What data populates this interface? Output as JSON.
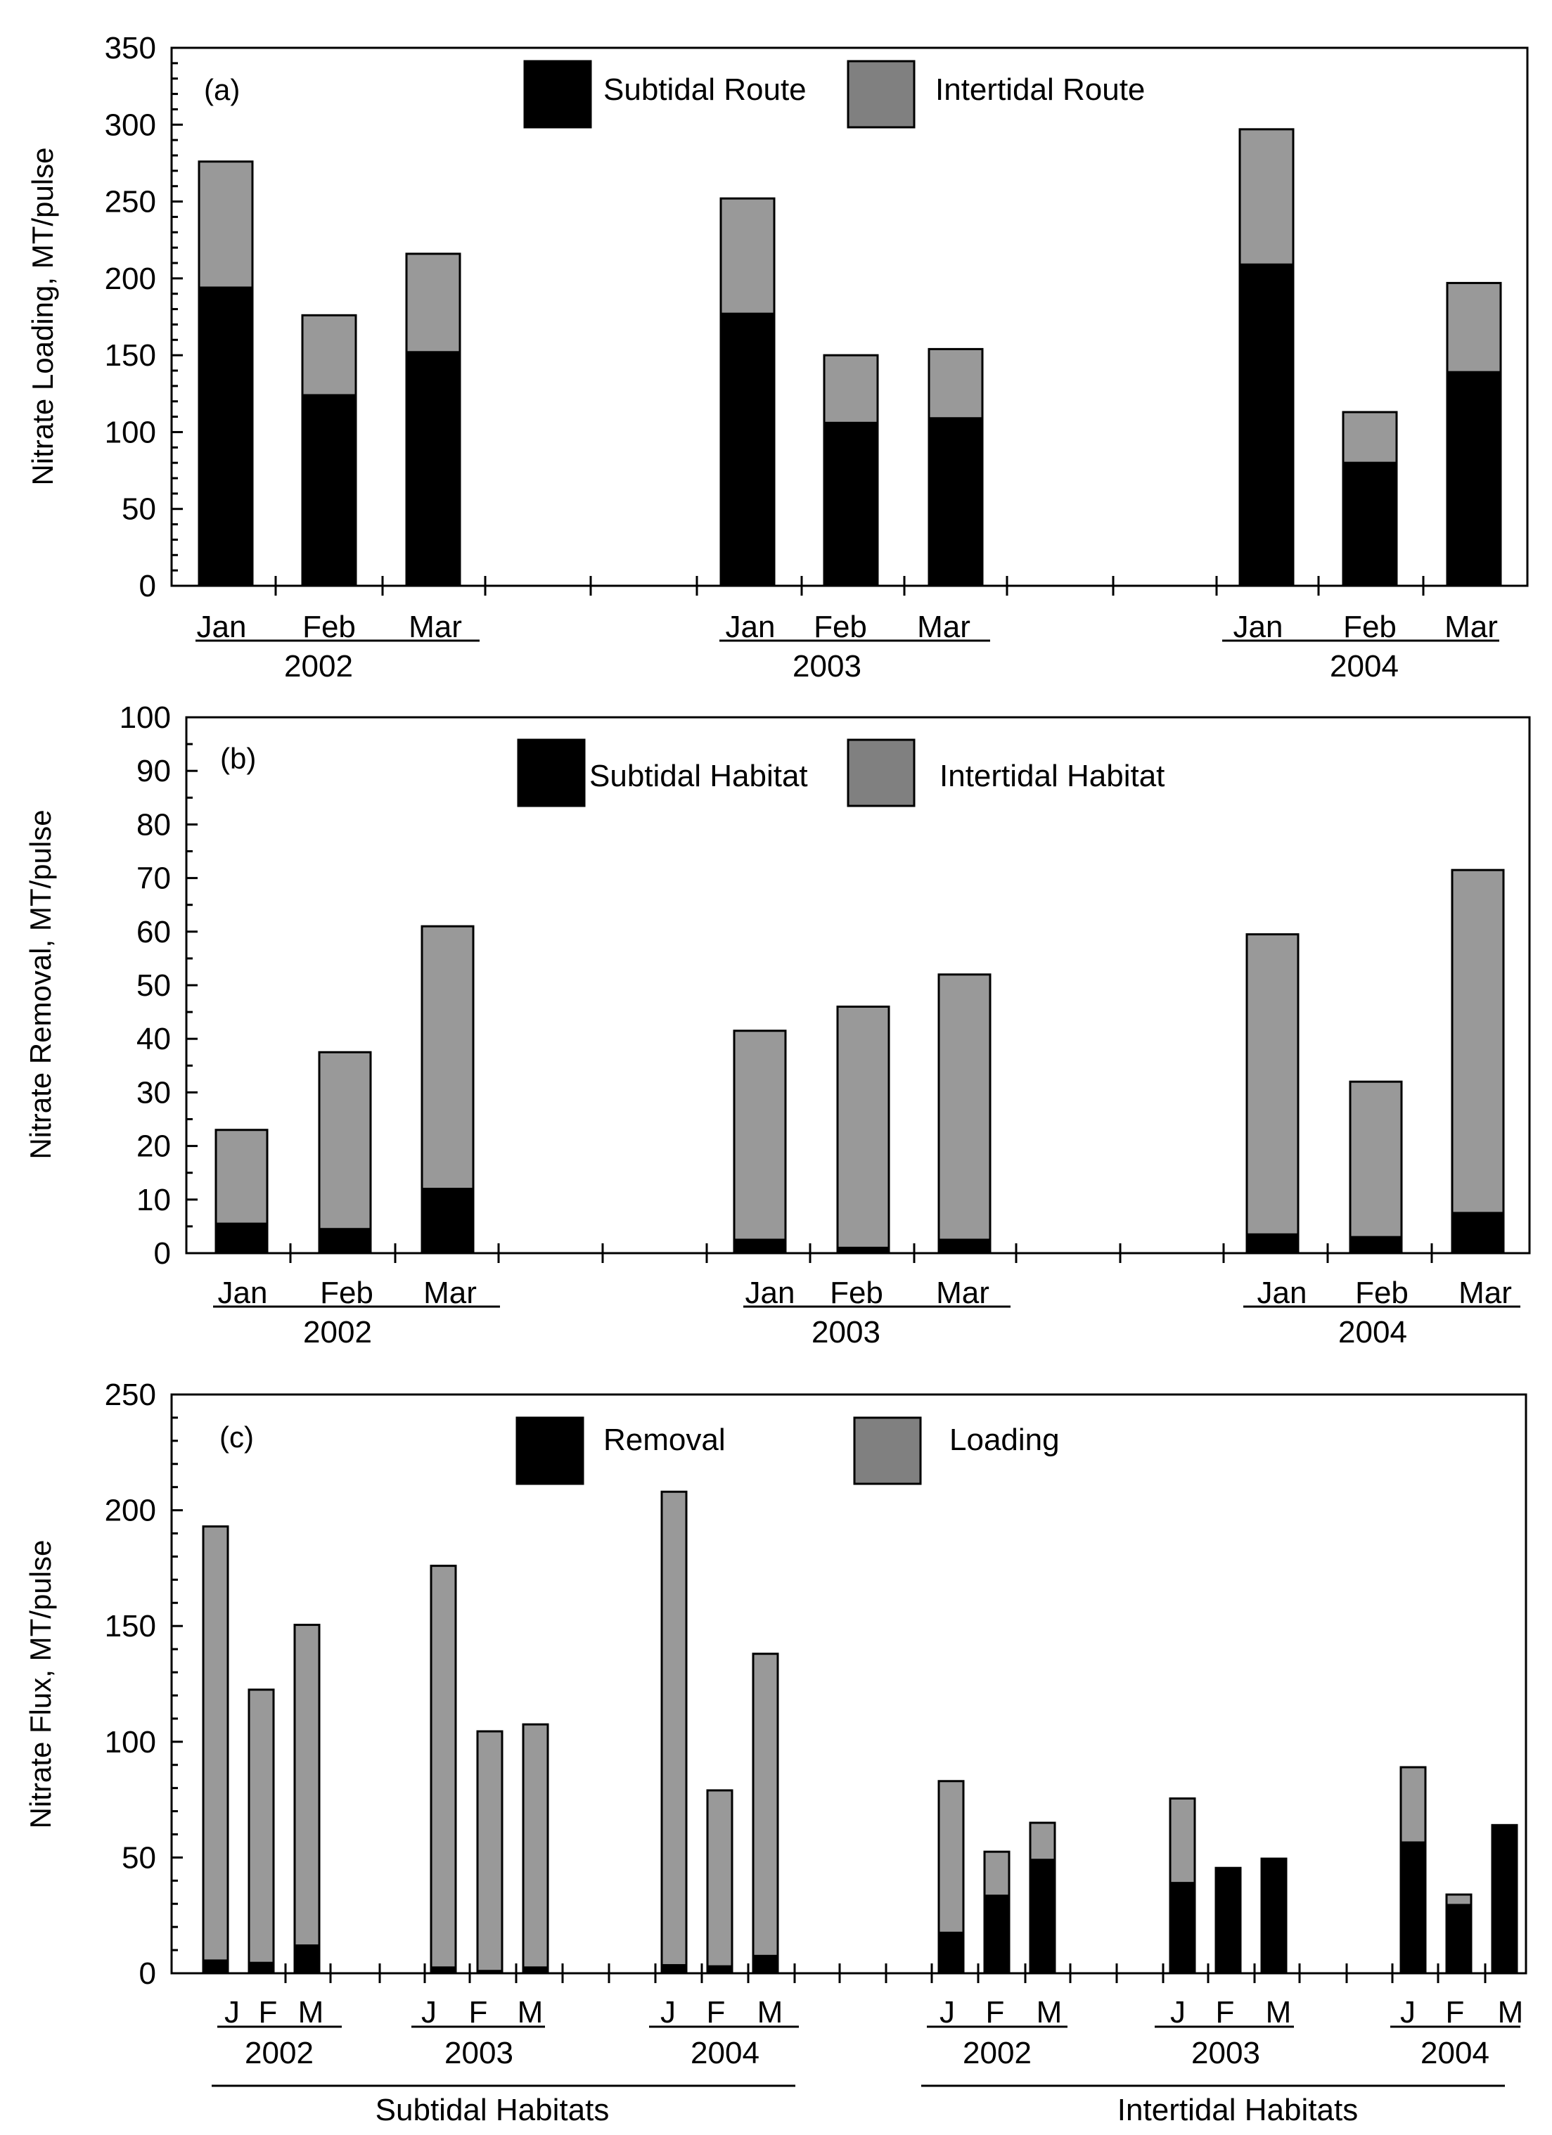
{
  "chart_data": [
    {
      "type": "bar",
      "stacked": true,
      "panel_label": "(a)",
      "ylabel": "Nitrate Loading, MT/pulse",
      "ylim": [
        0,
        350
      ],
      "yticks": [
        "0",
        "50",
        "100",
        "150",
        "200",
        "250",
        "300",
        "350"
      ],
      "grid": false,
      "legend_placement": "top-center",
      "legend": [
        "Subtidal Route",
        "Intertidal Route"
      ],
      "month_labels": [
        "Jan",
        "Feb",
        "Mar"
      ],
      "year_labels": [
        "2002",
        "2003",
        "2004"
      ],
      "categories": [
        "Jan 2002",
        "Feb 2002",
        "Mar 2002",
        "Jan 2003",
        "Feb 2003",
        "Mar 2003",
        "Jan 2004",
        "Feb 2004",
        "Mar 2004"
      ],
      "series": [
        {
          "name": "Subtidal Route",
          "color": "#000000",
          "values": [
            194,
            124,
            152,
            177,
            106,
            109,
            209,
            80,
            139
          ]
        },
        {
          "name": "Intertidal Route",
          "color": "#999999",
          "values": [
            82,
            52,
            64,
            75,
            44,
            45,
            88,
            33,
            58
          ]
        }
      ]
    },
    {
      "type": "bar",
      "stacked": true,
      "panel_label": "(b)",
      "ylabel": "Nitrate Removal, MT/pulse",
      "ylim": [
        0,
        100
      ],
      "yticks": [
        "0",
        "10",
        "20",
        "30",
        "40",
        "50",
        "60",
        "70",
        "80",
        "90",
        "100"
      ],
      "grid": false,
      "legend_placement": "top-center",
      "legend": [
        "Subtidal Habitat",
        "Intertidal Habitat"
      ],
      "month_labels": [
        "Jan",
        "Feb",
        "Mar"
      ],
      "year_labels": [
        "2002",
        "2003",
        "2004"
      ],
      "categories": [
        "Jan 2002",
        "Feb 2002",
        "Mar 2002",
        "Jan 2003",
        "Feb 2003",
        "Mar 2003",
        "Jan 2004",
        "Feb 2004",
        "Mar 2004"
      ],
      "series": [
        {
          "name": "Subtidal Habitat",
          "color": "#000000",
          "values": [
            5.5,
            4.5,
            12,
            2.5,
            1,
            2.5,
            3.5,
            3,
            7.5
          ]
        },
        {
          "name": "Intertidal Habitat",
          "color": "#999999",
          "values": [
            17.5,
            33,
            49,
            39,
            45,
            49.5,
            56,
            29,
            64
          ]
        }
      ]
    },
    {
      "type": "bar",
      "stacked": true,
      "panel_label": "(c)",
      "ylabel": "Nitrate Flux, MT/pulse",
      "ylim": [
        0,
        250
      ],
      "yticks": [
        "0",
        "50",
        "100",
        "150",
        "200",
        "250"
      ],
      "grid": false,
      "legend_placement": "top-center",
      "legend": [
        "Removal",
        "Loading"
      ],
      "month_labels": [
        "J",
        "F",
        "M"
      ],
      "year_labels": [
        "2002",
        "2003",
        "2004",
        "2002",
        "2003",
        "2004"
      ],
      "habitat_labels": [
        "Subtidal Habitats",
        "Intertidal Habitats"
      ],
      "categories": [
        "J 2002 Subtidal",
        "F 2002 Subtidal",
        "M 2002 Subtidal",
        "J 2003 Subtidal",
        "F 2003 Subtidal",
        "M 2003 Subtidal",
        "J 2004 Subtidal",
        "F 2004 Subtidal",
        "M 2004 Subtidal",
        "J 2002 Intertidal",
        "F 2002 Intertidal",
        "M 2002 Intertidal",
        "J 2003 Intertidal",
        "F 2003 Intertidal",
        "M 2003 Intertidal",
        "J 2004 Intertidal",
        "F 2004 Intertidal",
        "M 2004 Intertidal"
      ],
      "series": [
        {
          "name": "Removal",
          "color": "#000000",
          "values": [
            5.5,
            4.5,
            12,
            2.5,
            1,
            2.5,
            3.5,
            3,
            7.5,
            17.5,
            33.5,
            49,
            39,
            45.5,
            49.5,
            56.5,
            29.5,
            64
          ]
        },
        {
          "name": "Loading",
          "color": "#999999",
          "values": [
            187.5,
            118,
            138.5,
            173.5,
            103.5,
            105,
            204.5,
            76,
            130.5,
            65.5,
            19,
            16,
            36.5,
            0,
            0,
            32.5,
            4.5,
            0
          ]
        }
      ]
    }
  ]
}
